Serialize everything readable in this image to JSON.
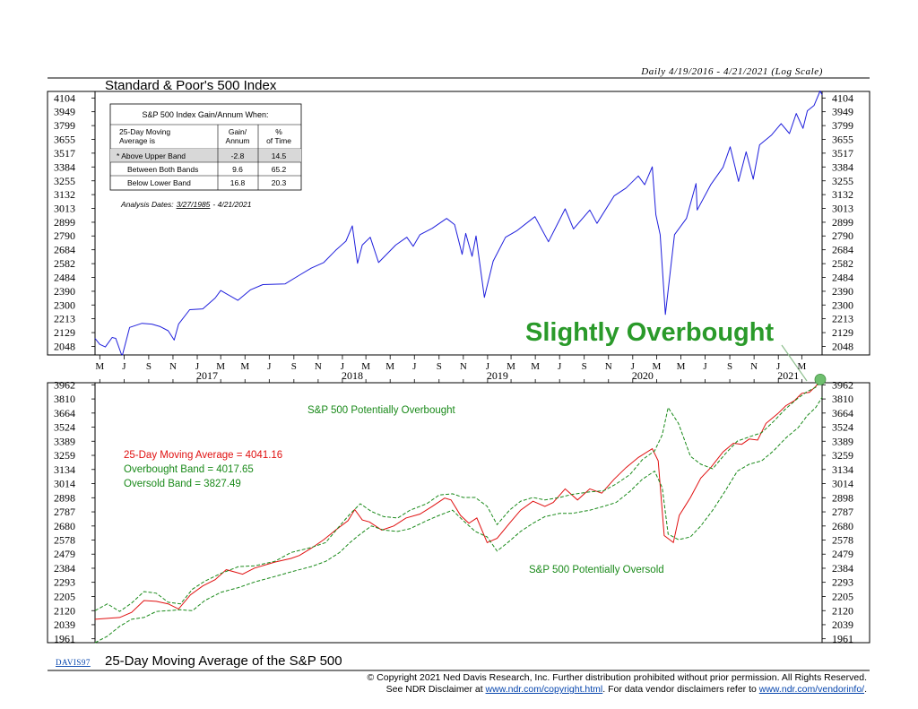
{
  "header": {
    "period_note": "Daily 4/19/2016 - 4/21/2021 (Log Scale)"
  },
  "colors": {
    "price": "#1f1fdc",
    "ma": "#e01010",
    "band": "#1a8a1a",
    "callout": "#2a9a2a",
    "axis": "#000000"
  },
  "stats_table": {
    "title": "S&P 500 Index Gain/Annum When:",
    "col_header_1": "25-Day Moving Average is",
    "col_header_2": "Gain/ Annum",
    "col_header_3": "% of Time",
    "rows": [
      {
        "label": "* Above Upper Band",
        "gain": "-2.8",
        "pct": "14.5"
      },
      {
        "label": "Between Both Bands",
        "gain": "9.6",
        "pct": "65.2"
      },
      {
        "label": "Below Lower Band",
        "gain": "16.8",
        "pct": "20.3"
      }
    ],
    "analysis_label": "Analysis Dates:",
    "analysis_start": "3/27/1985",
    "analysis_end": "- 4/21/2021"
  },
  "callout": {
    "text": "Slightly Overbought"
  },
  "legend": {
    "ma_label": "25-Day Moving Average = 4041.16",
    "ob_label": "Overbought Band = 4017.65",
    "os_label": "Oversold Band = 3827.49"
  },
  "annotations": {
    "overbought": "S&P 500 Potentially Overbought",
    "oversold": "S&P 500 Potentially Oversold"
  },
  "footer": {
    "source_code": "DAVIS97",
    "line1": "© Copyright 2021 Ned Davis Research, Inc.  Further distribution prohibited without prior permission.  All Rights Reserved.",
    "line2_a": "See NDR Disclaimer at",
    "line2_link1": "www.ndr.com/copyright.html",
    "line2_b": ". For data vendor disclaimers refer to",
    "line2_link2": "www.ndr.com/vendorinfo/",
    "line2_c": "."
  },
  "chart_data": [
    {
      "type": "line",
      "title": "Standard & Poor's 500 Index",
      "yscale": "log",
      "ylim": [
        2000,
        4180
      ],
      "y_ticks": [
        4104,
        3949,
        3799,
        3655,
        3517,
        3384,
        3255,
        3132,
        3013,
        2899,
        2790,
        2684,
        2582,
        2484,
        2390,
        2300,
        2213,
        2129,
        2048
      ],
      "series": [
        {
          "role": "price",
          "x": [
            "2016-04-19",
            "2016-05-01",
            "2016-05-15",
            "2016-06-01",
            "2016-06-10",
            "2016-06-24",
            "2016-06-27",
            "2016-07-15",
            "2016-08-15",
            "2016-09-09",
            "2016-09-30",
            "2016-10-20",
            "2016-11-04",
            "2016-11-15",
            "2016-12-13",
            "2017-01-15",
            "2017-02-15",
            "2017-03-01",
            "2017-04-13",
            "2017-05-15",
            "2017-06-15",
            "2017-08-10",
            "2017-09-15",
            "2017-10-15",
            "2017-11-15",
            "2017-12-15",
            "2018-01-10",
            "2018-01-26",
            "2018-02-08",
            "2018-02-20",
            "2018-03-12",
            "2018-04-02",
            "2018-05-15",
            "2018-06-12",
            "2018-06-28",
            "2018-07-15",
            "2018-08-15",
            "2018-09-20",
            "2018-10-10",
            "2018-10-29",
            "2018-11-07",
            "2018-11-23",
            "2018-12-03",
            "2018-12-24",
            "2019-01-15",
            "2019-02-15",
            "2019-03-15",
            "2019-04-30",
            "2019-06-03",
            "2019-07-15",
            "2019-08-05",
            "2019-09-15",
            "2019-10-03",
            "2019-11-15",
            "2019-12-15",
            "2020-01-15",
            "2020-01-31",
            "2020-02-19",
            "2020-02-28",
            "2020-03-10",
            "2020-03-23",
            "2020-04-15",
            "2020-05-15",
            "2020-06-08",
            "2020-06-11",
            "2020-07-15",
            "2020-08-15",
            "2020-09-02",
            "2020-09-23",
            "2020-10-12",
            "2020-10-30",
            "2020-11-15",
            "2020-12-15",
            "2021-01-08",
            "2021-01-29",
            "2021-02-15",
            "2021-03-04",
            "2021-03-15",
            "2021-04-01",
            "2021-04-16",
            "2021-04-21"
          ],
          "y": [
            2095,
            2060,
            2045,
            2100,
            2095,
            2005,
            2000,
            2160,
            2185,
            2180,
            2165,
            2140,
            2085,
            2180,
            2270,
            2275,
            2345,
            2395,
            2330,
            2400,
            2435,
            2440,
            2500,
            2550,
            2590,
            2680,
            2750,
            2870,
            2585,
            2720,
            2780,
            2590,
            2720,
            2780,
            2710,
            2800,
            2850,
            2930,
            2880,
            2650,
            2810,
            2635,
            2790,
            2350,
            2600,
            2780,
            2830,
            2945,
            2745,
            3010,
            2845,
            3000,
            2890,
            3120,
            3190,
            3300,
            3220,
            3385,
            2960,
            2800,
            2240,
            2800,
            2930,
            3230,
            3000,
            3220,
            3380,
            3580,
            3250,
            3530,
            3270,
            3600,
            3700,
            3820,
            3715,
            3930,
            3770,
            3960,
            4020,
            4185,
            4140
          ]
        }
      ]
    },
    {
      "type": "line",
      "title": "25-Day Moving Average of the S&P 500",
      "yscale": "log",
      "ylim": [
        1940,
        3985
      ],
      "y_ticks": [
        3962,
        3810,
        3664,
        3524,
        3389,
        3259,
        3134,
        3014,
        2898,
        2787,
        2680,
        2578,
        2479,
        2384,
        2293,
        2205,
        2120,
        2039,
        1961
      ],
      "x_tick_labels": [
        "M",
        "J",
        "S",
        "N",
        "J",
        "M",
        "M",
        "J",
        "S",
        "N",
        "J",
        "M",
        "M",
        "J",
        "S",
        "N",
        "J",
        "M",
        "M",
        "J",
        "S",
        "N",
        "J",
        "M",
        "M",
        "J",
        "S",
        "N",
        "J",
        "M"
      ],
      "year_labels": [
        "2017",
        "2018",
        "2019",
        "2020",
        "2021"
      ],
      "series": [
        {
          "role": "ma",
          "x": [
            "2016-04-19",
            "2016-05-20",
            "2016-06-20",
            "2016-07-20",
            "2016-08-20",
            "2016-09-20",
            "2016-10-20",
            "2016-11-15",
            "2016-12-15",
            "2017-01-15",
            "2017-02-15",
            "2017-03-15",
            "2017-04-25",
            "2017-05-25",
            "2017-07-15",
            "2017-08-25",
            "2017-09-15",
            "2017-10-15",
            "2017-11-15",
            "2017-12-15",
            "2018-01-15",
            "2018-02-01",
            "2018-02-20",
            "2018-03-10",
            "2018-04-10",
            "2018-05-10",
            "2018-06-10",
            "2018-07-15",
            "2018-08-15",
            "2018-09-15",
            "2018-10-01",
            "2018-10-25",
            "2018-11-15",
            "2018-12-05",
            "2018-12-31",
            "2019-01-25",
            "2019-02-25",
            "2019-03-25",
            "2019-04-25",
            "2019-05-25",
            "2019-06-15",
            "2019-07-15",
            "2019-08-15",
            "2019-09-15",
            "2019-10-15",
            "2019-11-15",
            "2019-12-15",
            "2020-01-15",
            "2020-02-19",
            "2020-03-05",
            "2020-03-20",
            "2020-04-12",
            "2020-04-27",
            "2020-05-25",
            "2020-06-20",
            "2020-07-15",
            "2020-08-15",
            "2020-09-10",
            "2020-10-01",
            "2020-10-20",
            "2020-11-10",
            "2020-12-01",
            "2020-12-31",
            "2021-01-20",
            "2021-02-10",
            "2021-03-01",
            "2021-03-20",
            "2021-04-05",
            "2021-04-21"
          ],
          "y": [
            2070,
            2075,
            2080,
            2110,
            2180,
            2175,
            2160,
            2130,
            2215,
            2270,
            2310,
            2375,
            2345,
            2385,
            2425,
            2450,
            2470,
            2520,
            2580,
            2650,
            2720,
            2805,
            2725,
            2710,
            2650,
            2680,
            2740,
            2770,
            2830,
            2895,
            2880,
            2760,
            2700,
            2740,
            2560,
            2590,
            2700,
            2800,
            2870,
            2830,
            2860,
            2970,
            2880,
            2970,
            2935,
            3050,
            3150,
            3240,
            3320,
            3210,
            2610,
            2560,
            2760,
            2900,
            3060,
            3150,
            3290,
            3370,
            3360,
            3410,
            3400,
            3560,
            3660,
            3740,
            3790,
            3870,
            3880,
            3945,
            4041
          ]
        },
        {
          "role": "upper_band",
          "x": [
            "2016-04-19",
            "2016-05-20",
            "2016-06-20",
            "2016-07-20",
            "2016-08-20",
            "2016-09-20",
            "2016-10-20",
            "2016-11-20",
            "2016-12-20",
            "2017-01-20",
            "2017-03-01",
            "2017-04-15",
            "2017-05-25",
            "2017-07-15",
            "2017-08-25",
            "2017-10-15",
            "2017-11-20",
            "2017-12-25",
            "2018-01-20",
            "2018-02-15",
            "2018-03-15",
            "2018-04-15",
            "2018-05-20",
            "2018-06-20",
            "2018-08-01",
            "2018-09-01",
            "2018-10-05",
            "2018-11-01",
            "2018-12-01",
            "2018-12-31",
            "2019-01-25",
            "2019-02-25",
            "2019-03-25",
            "2019-04-25",
            "2019-05-25",
            "2019-07-01",
            "2019-08-01",
            "2019-09-15",
            "2019-10-20",
            "2019-11-20",
            "2019-12-25",
            "2020-01-25",
            "2020-02-25",
            "2020-03-15",
            "2020-03-30",
            "2020-04-25",
            "2020-05-25",
            "2020-06-20",
            "2020-07-20",
            "2020-08-20",
            "2020-09-20",
            "2020-10-20",
            "2020-11-20",
            "2020-12-20",
            "2021-01-20",
            "2021-02-20",
            "2021-03-15",
            "2021-04-05",
            "2021-04-21"
          ],
          "y": [
            2120,
            2160,
            2115,
            2165,
            2235,
            2225,
            2170,
            2160,
            2250,
            2300,
            2350,
            2395,
            2400,
            2430,
            2490,
            2525,
            2560,
            2680,
            2770,
            2850,
            2790,
            2750,
            2740,
            2800,
            2850,
            2920,
            2930,
            2900,
            2900,
            2830,
            2690,
            2800,
            2870,
            2900,
            2880,
            2900,
            2925,
            2945,
            2955,
            3010,
            3090,
            3220,
            3300,
            3450,
            3720,
            3560,
            3250,
            3180,
            3140,
            3270,
            3390,
            3430,
            3470,
            3580,
            3710,
            3820,
            3890,
            3935,
            4017
          ]
        },
        {
          "role": "lower_band",
          "x": [
            "2016-04-19",
            "2016-05-20",
            "2016-06-20",
            "2016-07-20",
            "2016-08-20",
            "2016-09-20",
            "2016-10-20",
            "2016-11-20",
            "2016-12-20",
            "2017-01-20",
            "2017-03-01",
            "2017-04-15",
            "2017-05-25",
            "2017-07-15",
            "2017-08-25",
            "2017-10-15",
            "2017-11-20",
            "2017-12-25",
            "2018-01-20",
            "2018-02-15",
            "2018-03-15",
            "2018-04-15",
            "2018-05-20",
            "2018-06-20",
            "2018-08-01",
            "2018-09-01",
            "2018-10-05",
            "2018-11-01",
            "2018-12-01",
            "2018-12-31",
            "2019-01-25",
            "2019-02-25",
            "2019-03-25",
            "2019-04-25",
            "2019-05-25",
            "2019-07-01",
            "2019-08-01",
            "2019-09-15",
            "2019-10-20",
            "2019-11-20",
            "2019-12-25",
            "2020-01-25",
            "2020-02-25",
            "2020-03-15",
            "2020-03-30",
            "2020-04-25",
            "2020-05-25",
            "2020-06-20",
            "2020-07-20",
            "2020-08-20",
            "2020-09-20",
            "2020-10-20",
            "2020-11-20",
            "2020-12-20",
            "2021-01-20",
            "2021-02-20",
            "2021-03-15",
            "2021-04-05",
            "2021-04-21"
          ],
          "y": [
            1940,
            1975,
            2030,
            2070,
            2080,
            2115,
            2120,
            2125,
            2120,
            2180,
            2230,
            2260,
            2295,
            2330,
            2360,
            2395,
            2430,
            2490,
            2560,
            2620,
            2680,
            2650,
            2640,
            2660,
            2720,
            2760,
            2800,
            2720,
            2640,
            2600,
            2500,
            2570,
            2640,
            2700,
            2750,
            2775,
            2775,
            2800,
            2830,
            2860,
            2950,
            3050,
            3120,
            2980,
            2620,
            2580,
            2600,
            2680,
            2800,
            2950,
            3120,
            3180,
            3210,
            3300,
            3420,
            3520,
            3640,
            3720,
            3827
          ]
        }
      ]
    }
  ]
}
